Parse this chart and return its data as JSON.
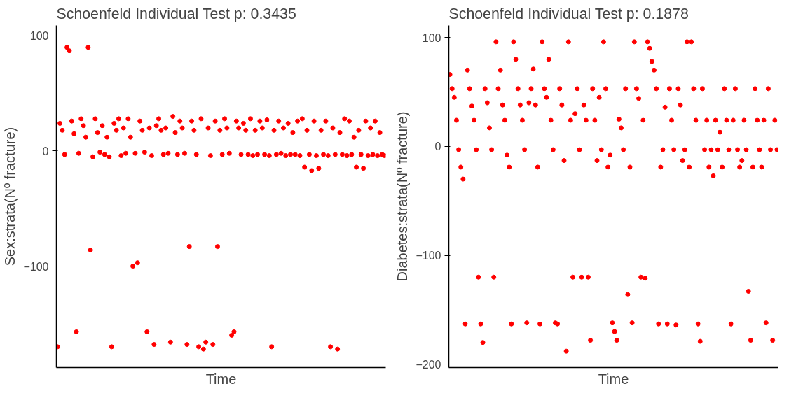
{
  "chart_data": [
    {
      "type": "scatter",
      "title": "Schoenfeld Individual Test p: 0.3435",
      "xlabel": "Time",
      "ylabel": "Sex:strata(Nº fracture)",
      "tick_labels": "y",
      "marker": "circle",
      "grid": false,
      "ylim": [
        -188,
        109
      ],
      "yticks": [
        -100,
        0,
        100
      ],
      "categories": [
        null,
        null,
        null,
        null,
        null,
        null,
        null,
        null,
        null,
        null,
        null,
        null,
        null,
        null,
        null,
        null,
        null,
        null,
        null,
        null,
        null,
        null,
        null,
        null,
        null,
        null,
        null,
        null,
        null,
        null,
        null,
        null,
        null,
        null,
        null,
        null,
        null,
        null,
        null,
        null,
        null,
        null,
        null,
        null,
        null,
        null,
        null,
        null,
        null,
        null,
        null,
        null,
        null,
        null,
        null,
        null,
        null,
        null,
        null,
        null,
        null,
        null,
        null,
        null,
        null,
        null,
        null,
        null,
        null,
        null,
        null,
        null,
        null,
        null,
        null,
        null,
        null,
        null,
        null,
        null,
        null,
        null,
        null,
        null,
        null,
        null,
        null,
        null,
        null,
        null,
        null,
        null,
        null,
        null,
        null,
        null,
        null,
        null,
        null,
        null,
        null,
        null,
        null,
        null,
        null,
        null,
        null,
        null,
        null,
        null,
        null,
        null,
        null,
        null,
        null,
        null,
        null,
        null,
        null,
        null,
        null,
        null,
        null,
        null,
        null,
        null,
        null,
        null,
        null,
        null,
        null,
        null,
        null,
        null,
        null,
        null,
        null,
        null,
        null,
        null
      ],
      "series": [
        {
          "color": "#ff0000",
          "values": [
            -170,
            24,
            18,
            -3,
            90,
            87,
            26,
            15,
            -157,
            -2,
            28,
            22,
            12,
            90,
            -86,
            -5,
            28,
            16,
            -1,
            22,
            -3,
            12,
            -5,
            -170,
            24,
            18,
            28,
            -4,
            20,
            -2,
            28,
            12,
            -100,
            -2,
            -97,
            26,
            18,
            -1,
            -157,
            20,
            -4,
            -168,
            22,
            28,
            18,
            -3,
            20,
            -2,
            -166,
            30,
            16,
            -3,
            26,
            20,
            -2,
            -168,
            -83,
            26,
            18,
            -3,
            -170,
            28,
            -172,
            -166,
            20,
            -4,
            -168,
            26,
            -83,
            18,
            -3,
            28,
            20,
            -2,
            -160,
            -157,
            26,
            20,
            -3,
            24,
            18,
            -3,
            28,
            -4,
            18,
            -3,
            26,
            20,
            -3,
            27,
            -4,
            -170,
            18,
            -3,
            26,
            -2,
            20,
            -4,
            24,
            -3,
            16,
            -3,
            26,
            -4,
            28,
            -14,
            18,
            -3,
            -17,
            26,
            -4,
            -15,
            18,
            -3,
            26,
            -4,
            -170,
            20,
            -3,
            -172,
            16,
            -3,
            28,
            -4,
            26,
            -3,
            12,
            -14,
            18,
            -3,
            -15,
            26,
            -4,
            20,
            -3,
            26,
            -4,
            16,
            -3,
            -4
          ]
        }
      ]
    },
    {
      "type": "scatter",
      "title": "Schoenfeld Individual Test p: 0.1878",
      "xlabel": "Time",
      "ylabel": "Diabetes:strata(Nº fracture)",
      "tick_labels": "y",
      "marker": "circle",
      "grid": false,
      "ylim": [
        -203,
        111
      ],
      "yticks": [
        -200,
        -100,
        0,
        100
      ],
      "categories": [
        null,
        null,
        null,
        null,
        null,
        null,
        null,
        null,
        null,
        null,
        null,
        null,
        null,
        null,
        null,
        null,
        null,
        null,
        null,
        null,
        null,
        null,
        null,
        null,
        null,
        null,
        null,
        null,
        null,
        null,
        null,
        null,
        null,
        null,
        null,
        null,
        null,
        null,
        null,
        null,
        null,
        null,
        null,
        null,
        null,
        null,
        null,
        null,
        null,
        null,
        null,
        null,
        null,
        null,
        null,
        null,
        null,
        null,
        null,
        null,
        null,
        null,
        null,
        null,
        null,
        null,
        null,
        null,
        null,
        null,
        null,
        null,
        null,
        null,
        null,
        null,
        null,
        null,
        null,
        null,
        null,
        null,
        null,
        null,
        null,
        null,
        null,
        null,
        null,
        null,
        null,
        null,
        null,
        null,
        null,
        null,
        null,
        null,
        null,
        null,
        null,
        null,
        null,
        null,
        null,
        null,
        null,
        null,
        null,
        null,
        null,
        null,
        null,
        null,
        null,
        null,
        null,
        null,
        null,
        null,
        null,
        null,
        null,
        null,
        null,
        null,
        null,
        null,
        null,
        null,
        null,
        null,
        null,
        null,
        null,
        null,
        null,
        null,
        null,
        null,
        null,
        null,
        null,
        null,
        null,
        null,
        null,
        null,
        null,
        null
      ],
      "series": [
        {
          "color": "#ff0000",
          "values": [
            66,
            53,
            45,
            24,
            -3,
            -19,
            -30,
            -163,
            70,
            53,
            37,
            24,
            -3,
            -120,
            -163,
            -180,
            53,
            40,
            17,
            -3,
            -120,
            96,
            53,
            70,
            38,
            24,
            -8,
            -19,
            -163,
            96,
            80,
            53,
            38,
            24,
            -3,
            -162,
            40,
            53,
            71,
            38,
            -19,
            -163,
            96,
            53,
            45,
            80,
            24,
            -3,
            -162,
            -163,
            53,
            38,
            -13,
            -188,
            96,
            24,
            -120,
            30,
            53,
            -3,
            -120,
            38,
            24,
            -120,
            -178,
            53,
            24,
            -13,
            45,
            -3,
            96,
            53,
            -19,
            -8,
            -162,
            -170,
            -178,
            25,
            17,
            -3,
            53,
            -136,
            -19,
            -162,
            96,
            53,
            44,
            -120,
            24,
            -121,
            96,
            90,
            78,
            70,
            53,
            -163,
            -19,
            -3,
            36,
            -163,
            53,
            24,
            -3,
            -164,
            53,
            38,
            -13,
            -3,
            96,
            -19,
            96,
            53,
            24,
            -163,
            -179,
            53,
            -3,
            24,
            -19,
            -3,
            -27,
            24,
            -3,
            13,
            -19,
            53,
            24,
            -3,
            -163,
            24,
            53,
            -3,
            -19,
            -13,
            24,
            -3,
            -133,
            -178,
            -19,
            53,
            24,
            -3,
            -19,
            24,
            -162,
            53,
            -3,
            -178,
            24,
            -3
          ]
        }
      ]
    }
  ]
}
